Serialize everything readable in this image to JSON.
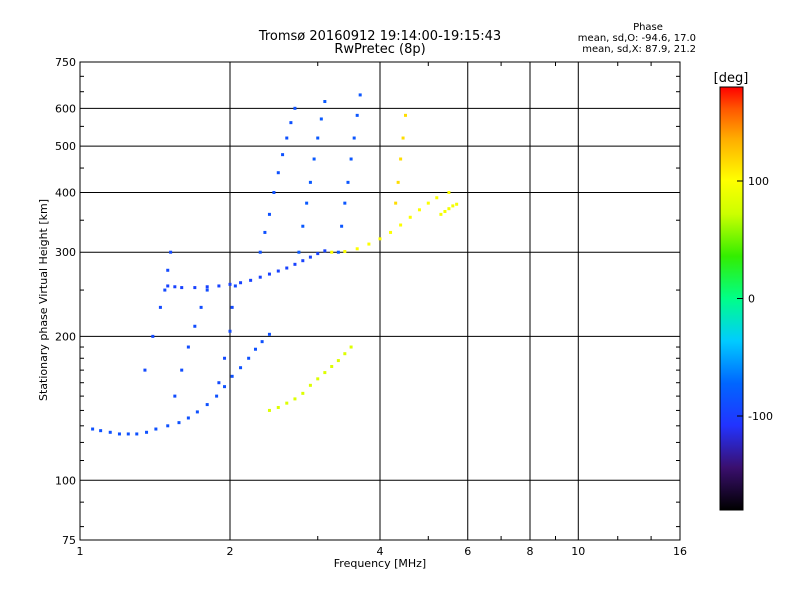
{
  "chart_data": {
    "type": "scatter",
    "title": "Tromsø 20160912 19:14:00-19:15:43",
    "subtitle": "RwPretec (8p)",
    "xlabel": "Frequency [MHz]",
    "ylabel": "Stationary phase Virtual Height [km]",
    "x_scale": "log",
    "y_scale": "log",
    "xlim": [
      1,
      16
    ],
    "ylim": [
      75,
      750
    ],
    "x_ticks": [
      1,
      2,
      4,
      6,
      8,
      10,
      16
    ],
    "y_ticks": [
      75,
      100,
      200,
      300,
      400,
      500,
      600,
      750
    ],
    "grid": true,
    "stats": {
      "header": "Phase",
      "line_o": "mean, sd,O: -94.6, 17.0",
      "line_x": "mean, sd,X:  87.9, 21.2"
    },
    "colorbar": {
      "label": "[deg]",
      "ticks": [
        100,
        0,
        -100
      ],
      "range": [
        -180,
        180
      ],
      "colors": [
        "#000000",
        "#3a0f6e",
        "#2233ff",
        "#0066ff",
        "#00ccff",
        "#00ff88",
        "#33ee00",
        "#ccff00",
        "#ffff00",
        "#ffaa00",
        "#ff5500",
        "#ff0000"
      ]
    },
    "traces": [
      {
        "name": "",
        "phase": -95,
        "points": [
          [
            1.06,
            128
          ],
          [
            1.1,
            127
          ],
          [
            1.15,
            126
          ],
          [
            1.2,
            125
          ],
          [
            1.25,
            125
          ],
          [
            1.3,
            125
          ],
          [
            1.36,
            126
          ],
          [
            1.42,
            128
          ],
          [
            1.5,
            130
          ],
          [
            1.58,
            132
          ],
          [
            1.65,
            135
          ],
          [
            1.72,
            139
          ],
          [
            1.8,
            144
          ],
          [
            1.88,
            150
          ],
          [
            1.95,
            157
          ],
          [
            2.02,
            165
          ],
          [
            2.1,
            172
          ],
          [
            2.18,
            180
          ],
          [
            2.25,
            188
          ],
          [
            2.32,
            195
          ],
          [
            2.4,
            202
          ]
        ]
      },
      {
        "name": "",
        "phase": -105,
        "points": [
          [
            1.5,
            255
          ],
          [
            1.55,
            254
          ],
          [
            1.6,
            253
          ],
          [
            1.7,
            253
          ],
          [
            1.8,
            254
          ],
          [
            1.9,
            255
          ],
          [
            2.0,
            257
          ],
          [
            2.1,
            259
          ],
          [
            2.2,
            262
          ],
          [
            2.3,
            266
          ],
          [
            2.4,
            270
          ],
          [
            2.5,
            274
          ],
          [
            2.6,
            278
          ],
          [
            2.7,
            283
          ],
          [
            2.8,
            288
          ],
          [
            2.9,
            293
          ],
          [
            3.0,
            298
          ],
          [
            3.1,
            302
          ]
        ]
      },
      {
        "name": "",
        "phase": -100,
        "points": [
          [
            1.35,
            170
          ],
          [
            1.4,
            200
          ],
          [
            1.45,
            230
          ],
          [
            1.48,
            250
          ],
          [
            1.5,
            275
          ],
          [
            1.52,
            300
          ]
        ]
      },
      {
        "name": "",
        "phase": -98,
        "points": [
          [
            1.55,
            150
          ],
          [
            1.6,
            170
          ],
          [
            1.65,
            190
          ],
          [
            1.7,
            210
          ],
          [
            1.75,
            230
          ],
          [
            1.8,
            250
          ]
        ]
      },
      {
        "name": "",
        "phase": -100,
        "points": [
          [
            1.9,
            160
          ],
          [
            1.95,
            180
          ],
          [
            2.0,
            205
          ],
          [
            2.02,
            230
          ],
          [
            2.05,
            255
          ]
        ]
      },
      {
        "name": "",
        "phase": -95,
        "points": [
          [
            2.3,
            300
          ],
          [
            2.35,
            330
          ],
          [
            2.4,
            360
          ],
          [
            2.45,
            400
          ],
          [
            2.5,
            440
          ],
          [
            2.55,
            480
          ],
          [
            2.6,
            520
          ],
          [
            2.65,
            560
          ],
          [
            2.7,
            600
          ]
        ]
      },
      {
        "name": "",
        "phase": -90,
        "points": [
          [
            2.75,
            300
          ],
          [
            2.8,
            340
          ],
          [
            2.85,
            380
          ],
          [
            2.9,
            420
          ],
          [
            2.95,
            470
          ],
          [
            3.0,
            520
          ],
          [
            3.05,
            570
          ],
          [
            3.1,
            620
          ]
        ]
      },
      {
        "name": "",
        "phase": -92,
        "points": [
          [
            3.3,
            300
          ],
          [
            3.35,
            340
          ],
          [
            3.4,
            380
          ],
          [
            3.45,
            420
          ],
          [
            3.5,
            470
          ],
          [
            3.55,
            520
          ],
          [
            3.6,
            580
          ],
          [
            3.65,
            640
          ]
        ]
      },
      {
        "name": "",
        "phase": 80,
        "points": [
          [
            3.2,
            300
          ],
          [
            3.4,
            301
          ],
          [
            3.6,
            305
          ],
          [
            3.8,
            312
          ],
          [
            4.0,
            320
          ],
          [
            4.2,
            330
          ],
          [
            4.4,
            342
          ],
          [
            4.6,
            355
          ],
          [
            4.8,
            368
          ],
          [
            5.0,
            380
          ],
          [
            5.2,
            390
          ],
          [
            5.5,
            400
          ]
        ]
      },
      {
        "name": "",
        "phase": 95,
        "points": [
          [
            4.3,
            380
          ],
          [
            4.35,
            420
          ],
          [
            4.4,
            470
          ],
          [
            4.45,
            520
          ],
          [
            4.5,
            580
          ]
        ]
      },
      {
        "name": "",
        "phase": 60,
        "points": [
          [
            2.4,
            140
          ],
          [
            2.5,
            142
          ],
          [
            2.6,
            145
          ],
          [
            2.7,
            148
          ],
          [
            2.8,
            152
          ],
          [
            2.9,
            158
          ],
          [
            3.0,
            163
          ],
          [
            3.1,
            168
          ],
          [
            3.2,
            173
          ],
          [
            3.3,
            178
          ],
          [
            3.4,
            184
          ],
          [
            3.5,
            190
          ]
        ]
      },
      {
        "name": "",
        "phase": 75,
        "points": [
          [
            5.3,
            360
          ],
          [
            5.4,
            365
          ],
          [
            5.5,
            370
          ],
          [
            5.6,
            375
          ],
          [
            5.7,
            378
          ]
        ]
      }
    ]
  }
}
